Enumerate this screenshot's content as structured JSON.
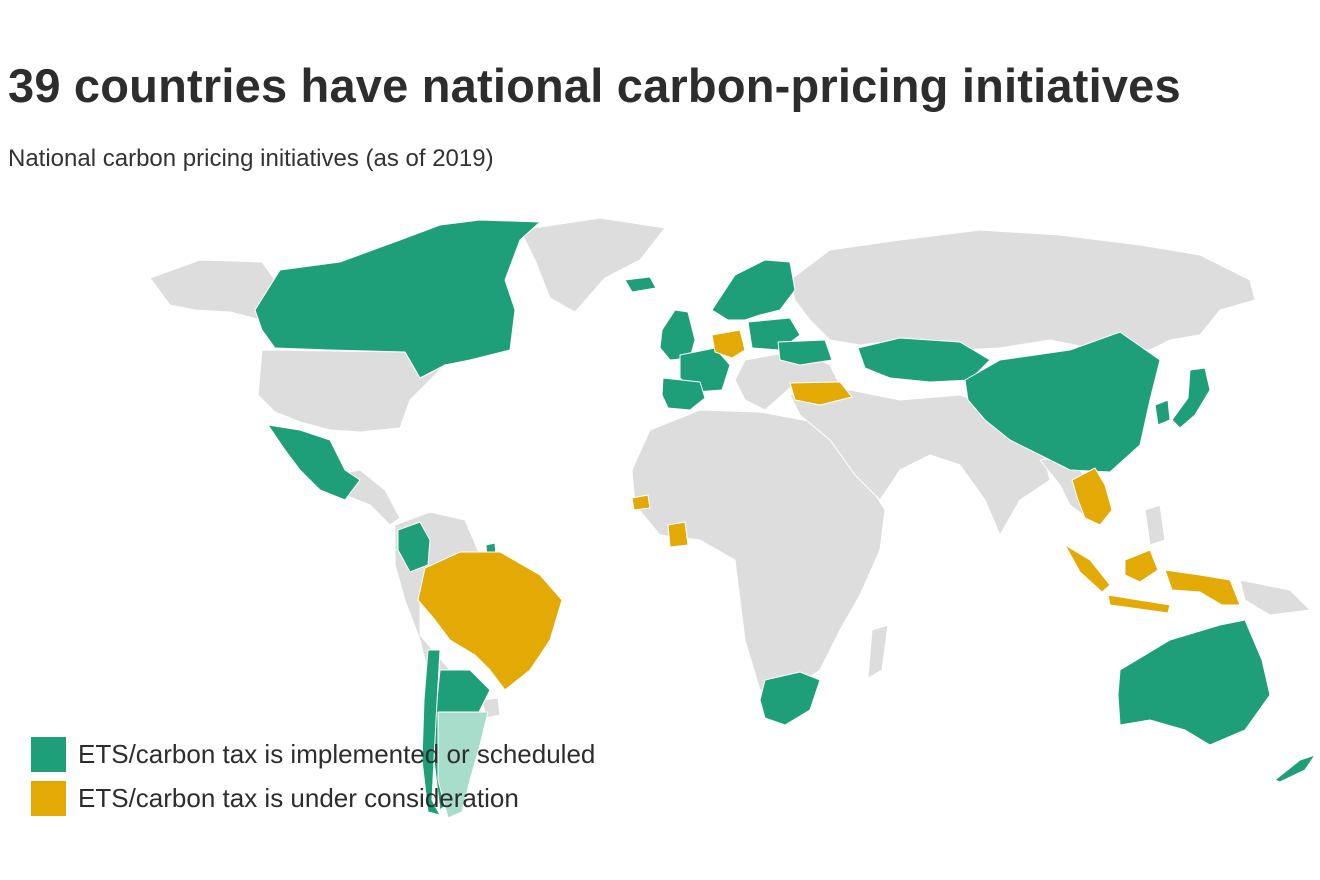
{
  "title": "39 countries have national carbon-pricing initiatives",
  "subtitle": "National carbon pricing initiatives (as of 2019)",
  "colors": {
    "implemented": "#1e9e79",
    "consideration": "#e3aa06",
    "other": "#dddddd",
    "partial": "#a8dccb",
    "borders": "#ffffff"
  },
  "legend": [
    {
      "label": "ETS/carbon tax is implemented or scheduled",
      "color": "#1e9e79"
    },
    {
      "label": "ETS/carbon tax is under consideration",
      "color": "#e3aa06"
    }
  ],
  "map_data": {
    "type": "choropleth",
    "implemented": [
      "Canada",
      "Mexico",
      "Colombia",
      "Chile",
      "Argentina",
      "French Guiana",
      "Iceland",
      "Ireland",
      "United Kingdom",
      "Portugal",
      "Spain",
      "France",
      "Switzerland",
      "Norway",
      "Sweden",
      "Finland",
      "Denmark",
      "Poland",
      "Baltic States",
      "Ukraine",
      "Kazakhstan",
      "China",
      "South Korea",
      "Japan",
      "South Africa",
      "Australia",
      "New Zealand"
    ],
    "consideration": [
      "Brazil",
      "Germany",
      "Turkey",
      "Senegal",
      "Côte d'Ivoire",
      "Thailand",
      "Vietnam",
      "Indonesia"
    ]
  }
}
